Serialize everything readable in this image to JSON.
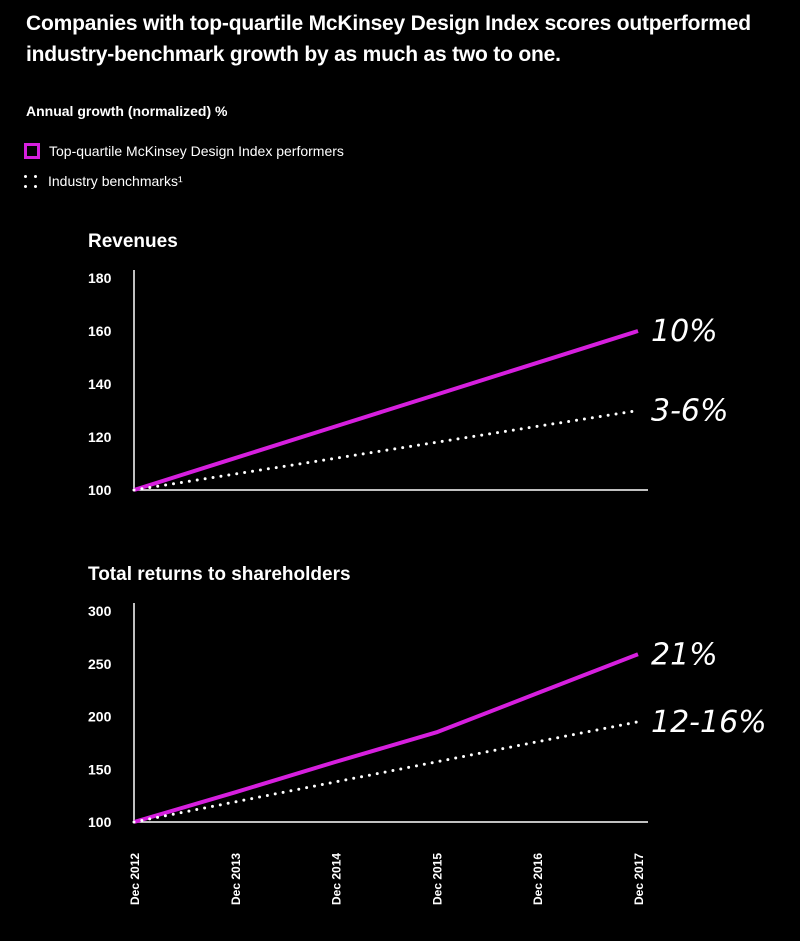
{
  "header": {
    "title": "Companies with top-quartile McKinsey Design Index scores outperformed industry-benchmark growth by as much as two to one.",
    "subtitle": "Annual growth (normalized) %"
  },
  "legend": [
    {
      "label": "Top-quartile McKinsey Design Index performers",
      "style": "solid",
      "color": "#d61fde"
    },
    {
      "label": "Industry benchmarks¹",
      "style": "dotted",
      "color": "#ffffff"
    }
  ],
  "colors": {
    "accent": "#d61fde",
    "benchmark": "#ffffff",
    "background": "#000000"
  },
  "chart_data": [
    {
      "type": "line",
      "title": "Revenues",
      "x": [
        "Dec 2012",
        "Dec 2013",
        "Dec 2014",
        "Dec 2015",
        "Dec 2016",
        "Dec 2017"
      ],
      "ylim": [
        100,
        180
      ],
      "yticks": [
        100,
        120,
        140,
        160,
        180
      ],
      "grid": false,
      "series": [
        {
          "style": "solid",
          "values": [
            100,
            112,
            124,
            136,
            148,
            160
          ],
          "end_label": "10%"
        },
        {
          "style": "dotted",
          "values": [
            100,
            106,
            112,
            118,
            124,
            130
          ],
          "end_label": "3-6%"
        }
      ]
    },
    {
      "type": "line",
      "title": "Total returns to shareholders",
      "x": [
        "Dec 2012",
        "Dec 2013",
        "Dec 2014",
        "Dec 2015",
        "Dec 2016",
        "Dec 2017"
      ],
      "ylim": [
        100,
        300
      ],
      "yticks": [
        100,
        150,
        200,
        250,
        300
      ],
      "grid": false,
      "series": [
        {
          "style": "solid",
          "values": [
            100,
            128,
            157,
            185,
            222,
            259
          ],
          "end_label": "21%"
        },
        {
          "style": "dotted",
          "values": [
            100,
            119,
            138,
            157,
            176,
            195
          ],
          "end_label": "12-16%"
        }
      ]
    }
  ]
}
